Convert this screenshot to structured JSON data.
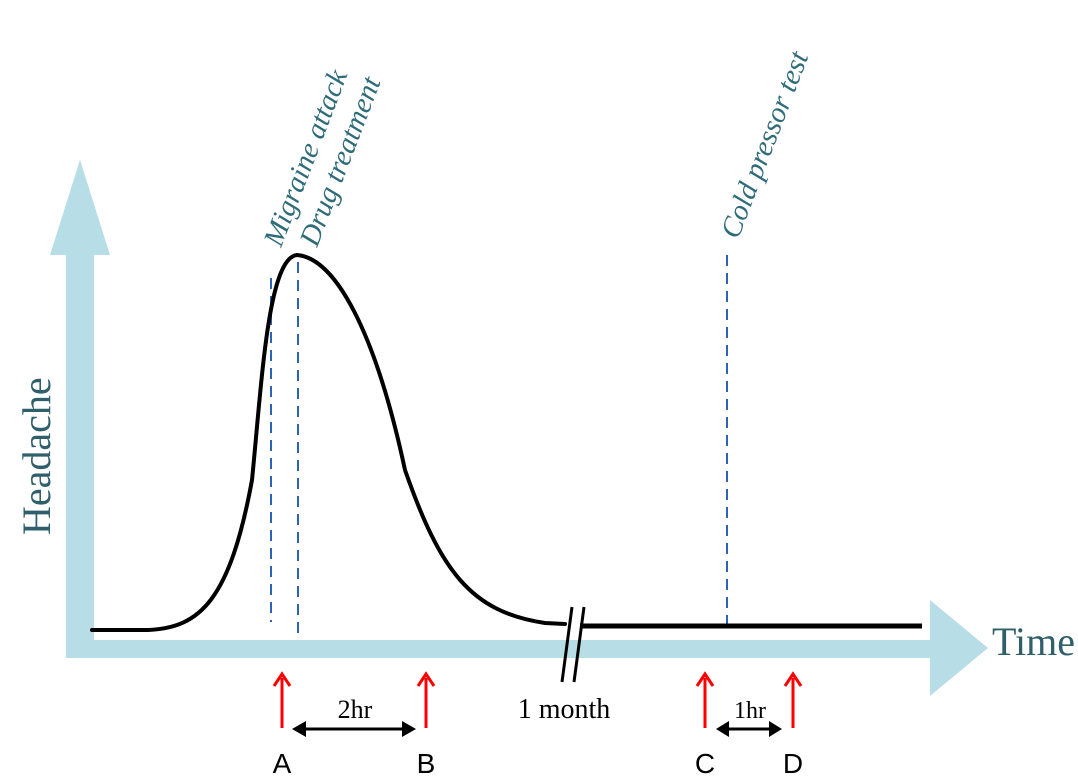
{
  "axes": {
    "y_label": "Headache",
    "x_label": "Time"
  },
  "events": [
    {
      "id": "migraine",
      "label": "Migraine attack"
    },
    {
      "id": "drug",
      "label": "Drug treatment"
    },
    {
      "id": "cold",
      "label": "Cold pressor test"
    }
  ],
  "timepoints": [
    {
      "id": "A",
      "label": "A"
    },
    {
      "id": "B",
      "label": "B"
    },
    {
      "id": "C",
      "label": "C"
    },
    {
      "id": "D",
      "label": "D"
    }
  ],
  "intervals": {
    "ab": "2hr",
    "break": "1 month",
    "cd": "1hr"
  },
  "colors": {
    "axis": "#b7dde6",
    "axis_text": "#2f5f6b",
    "event_text": "#2f6b78",
    "event_line": "#2c63b8",
    "curve": "#000000",
    "marker_arrow": "#ff0000"
  }
}
